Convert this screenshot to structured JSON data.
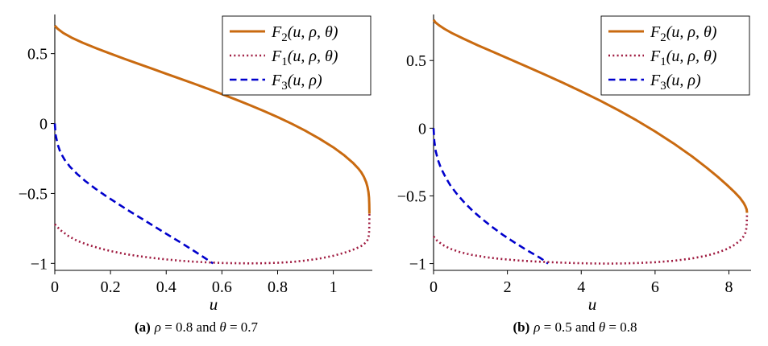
{
  "chart_data": [
    {
      "type": "line",
      "xlabel": "u",
      "xlim": [
        0,
        1.14
      ],
      "ylim": [
        -1.05,
        0.78
      ],
      "grid": false,
      "legend_position": "top-right",
      "xticks": [
        {
          "v": 0,
          "label": "0"
        },
        {
          "v": 0.2,
          "label": "0.2"
        },
        {
          "v": 0.4,
          "label": "0.4"
        },
        {
          "v": 0.6,
          "label": "0.6"
        },
        {
          "v": 0.8,
          "label": "0.8"
        },
        {
          "v": 1,
          "label": "1"
        }
      ],
      "yticks": [
        {
          "v": -1,
          "label": "−1"
        },
        {
          "v": -0.5,
          "label": "−0.5"
        },
        {
          "v": 0,
          "label": "0"
        },
        {
          "v": 0.5,
          "label": "0.5"
        }
      ],
      "caption": {
        "prefix": "(a)",
        "text": "ρ = 0.8 and θ = 0.7"
      },
      "series": [
        {
          "name": "F2",
          "label_base": "F",
          "label_sub": "2",
          "label_args": "(u, ρ, θ)",
          "color": "#C96A10",
          "style": "solid",
          "points": [
            [
              0,
              0.7
            ],
            [
              0.01,
              0.678
            ],
            [
              0.03,
              0.648
            ],
            [
              0.06,
              0.615
            ],
            [
              0.1,
              0.578
            ],
            [
              0.15,
              0.538
            ],
            [
              0.2,
              0.5
            ],
            [
              0.25,
              0.463
            ],
            [
              0.3,
              0.427
            ],
            [
              0.35,
              0.392
            ],
            [
              0.4,
              0.356
            ],
            [
              0.45,
              0.321
            ],
            [
              0.5,
              0.285
            ],
            [
              0.55,
              0.248
            ],
            [
              0.6,
              0.21
            ],
            [
              0.65,
              0.172
            ],
            [
              0.7,
              0.132
            ],
            [
              0.75,
              0.09
            ],
            [
              0.8,
              0.046
            ],
            [
              0.85,
              -0.001
            ],
            [
              0.9,
              -0.052
            ],
            [
              0.95,
              -0.108
            ],
            [
              1.0,
              -0.17
            ],
            [
              1.04,
              -0.228
            ],
            [
              1.07,
              -0.28
            ],
            [
              1.09,
              -0.322
            ],
            [
              1.1,
              -0.348
            ],
            [
              1.11,
              -0.382
            ],
            [
              1.118,
              -0.42
            ],
            [
              1.123,
              -0.455
            ],
            [
              1.126,
              -0.49
            ],
            [
              1.128,
              -0.53
            ],
            [
              1.129,
              -0.575
            ],
            [
              1.1295,
              -0.645
            ]
          ]
        },
        {
          "name": "F1",
          "label_base": "F",
          "label_sub": "1",
          "label_args": "(u, ρ, θ)",
          "color": "#9F1B40",
          "style": "dotted",
          "points": [
            [
              0,
              -0.72
            ],
            [
              0.02,
              -0.762
            ],
            [
              0.05,
              -0.806
            ],
            [
              0.08,
              -0.838
            ],
            [
              0.12,
              -0.868
            ],
            [
              0.16,
              -0.892
            ],
            [
              0.2,
              -0.912
            ],
            [
              0.25,
              -0.932
            ],
            [
              0.3,
              -0.948
            ],
            [
              0.35,
              -0.961
            ],
            [
              0.4,
              -0.972
            ],
            [
              0.45,
              -0.981
            ],
            [
              0.5,
              -0.988
            ],
            [
              0.55,
              -0.993
            ],
            [
              0.6,
              -0.997
            ],
            [
              0.65,
              -0.999
            ],
            [
              0.7,
              -1.0
            ],
            [
              0.75,
              -0.999
            ],
            [
              0.8,
              -0.996
            ],
            [
              0.85,
              -0.99
            ],
            [
              0.9,
              -0.98
            ],
            [
              0.95,
              -0.966
            ],
            [
              1.0,
              -0.946
            ],
            [
              1.04,
              -0.924
            ],
            [
              1.07,
              -0.903
            ],
            [
              1.09,
              -0.886
            ],
            [
              1.1,
              -0.876
            ],
            [
              1.11,
              -0.862
            ],
            [
              1.118,
              -0.848
            ],
            [
              1.123,
              -0.832
            ],
            [
              1.126,
              -0.815
            ],
            [
              1.128,
              -0.79
            ],
            [
              1.129,
              -0.755
            ],
            [
              1.1295,
              -0.645
            ]
          ]
        },
        {
          "name": "F3",
          "label_base": "F",
          "label_sub": "3",
          "label_args": "(u, ρ)",
          "color": "#0000CC",
          "style": "dashed",
          "points": [
            [
              0,
              0
            ],
            [
              0.003,
              -0.08
            ],
            [
              0.01,
              -0.148
            ],
            [
              0.02,
              -0.205
            ],
            [
              0.035,
              -0.258
            ],
            [
              0.055,
              -0.31
            ],
            [
              0.08,
              -0.36
            ],
            [
              0.11,
              -0.412
            ],
            [
              0.145,
              -0.465
            ],
            [
              0.185,
              -0.52
            ],
            [
              0.23,
              -0.578
            ],
            [
              0.275,
              -0.635
            ],
            [
              0.32,
              -0.69
            ],
            [
              0.365,
              -0.745
            ],
            [
              0.41,
              -0.8
            ],
            [
              0.455,
              -0.855
            ],
            [
              0.495,
              -0.905
            ],
            [
              0.53,
              -0.95
            ],
            [
              0.555,
              -0.983
            ],
            [
              0.568,
              -1.0
            ]
          ]
        }
      ]
    },
    {
      "type": "line",
      "xlabel": "u",
      "xlim": [
        0,
        8.6
      ],
      "ylim": [
        -1.05,
        0.84
      ],
      "grid": false,
      "legend_position": "top-right",
      "xticks": [
        {
          "v": 0,
          "label": "0"
        },
        {
          "v": 2,
          "label": "2"
        },
        {
          "v": 4,
          "label": "4"
        },
        {
          "v": 6,
          "label": "6"
        },
        {
          "v": 8,
          "label": "8"
        }
      ],
      "yticks": [
        {
          "v": -1,
          "label": "−1"
        },
        {
          "v": -0.5,
          "label": "−0.5"
        },
        {
          "v": 0,
          "label": "0"
        },
        {
          "v": 0.5,
          "label": "0.5"
        }
      ],
      "caption": {
        "prefix": "(b)",
        "text": "ρ = 0.5 and θ = 0.8"
      },
      "series": [
        {
          "name": "F2",
          "label_base": "F",
          "label_sub": "2",
          "label_args": "(u, ρ, θ)",
          "color": "#C96A10",
          "style": "solid",
          "points": [
            [
              0,
              0.8
            ],
            [
              0.05,
              0.782
            ],
            [
              0.15,
              0.76
            ],
            [
              0.3,
              0.733
            ],
            [
              0.5,
              0.702
            ],
            [
              0.8,
              0.662
            ],
            [
              1.2,
              0.612
            ],
            [
              1.6,
              0.565
            ],
            [
              2.0,
              0.518
            ],
            [
              2.5,
              0.458
            ],
            [
              3.0,
              0.398
            ],
            [
              3.5,
              0.336
            ],
            [
              4.0,
              0.272
            ],
            [
              4.5,
              0.205
            ],
            [
              5.0,
              0.134
            ],
            [
              5.5,
              0.058
            ],
            [
              6.0,
              -0.024
            ],
            [
              6.5,
              -0.112
            ],
            [
              7.0,
              -0.208
            ],
            [
              7.4,
              -0.292
            ],
            [
              7.7,
              -0.36
            ],
            [
              7.95,
              -0.42
            ],
            [
              8.15,
              -0.472
            ],
            [
              8.3,
              -0.515
            ],
            [
              8.4,
              -0.552
            ],
            [
              8.45,
              -0.578
            ],
            [
              8.48,
              -0.6
            ],
            [
              8.49,
              -0.625
            ]
          ]
        },
        {
          "name": "F1",
          "label_base": "F",
          "label_sub": "1",
          "label_args": "(u, ρ, θ)",
          "color": "#9F1B40",
          "style": "dotted",
          "points": [
            [
              0,
              -0.8
            ],
            [
              0.1,
              -0.832
            ],
            [
              0.25,
              -0.862
            ],
            [
              0.45,
              -0.89
            ],
            [
              0.7,
              -0.914
            ],
            [
              1.0,
              -0.934
            ],
            [
              1.4,
              -0.952
            ],
            [
              1.8,
              -0.965
            ],
            [
              2.3,
              -0.977
            ],
            [
              2.8,
              -0.985
            ],
            [
              3.3,
              -0.991
            ],
            [
              3.8,
              -0.996
            ],
            [
              4.3,
              -0.999
            ],
            [
              4.7,
              -1.0
            ],
            [
              5.1,
              -0.999
            ],
            [
              5.5,
              -0.996
            ],
            [
              6.0,
              -0.99
            ],
            [
              6.5,
              -0.979
            ],
            [
              7.0,
              -0.962
            ],
            [
              7.4,
              -0.941
            ],
            [
              7.7,
              -0.918
            ],
            [
              7.95,
              -0.892
            ],
            [
              8.15,
              -0.862
            ],
            [
              8.3,
              -0.83
            ],
            [
              8.4,
              -0.798
            ],
            [
              8.45,
              -0.77
            ],
            [
              8.48,
              -0.73
            ],
            [
              8.49,
              -0.625
            ]
          ]
        },
        {
          "name": "F3",
          "label_base": "F",
          "label_sub": "3",
          "label_args": "(u, ρ)",
          "color": "#0000CC",
          "style": "dashed",
          "points": [
            [
              0,
              0
            ],
            [
              0.02,
              -0.095
            ],
            [
              0.06,
              -0.17
            ],
            [
              0.12,
              -0.235
            ],
            [
              0.2,
              -0.295
            ],
            [
              0.32,
              -0.36
            ],
            [
              0.45,
              -0.42
            ],
            [
              0.62,
              -0.482
            ],
            [
              0.82,
              -0.545
            ],
            [
              1.05,
              -0.608
            ],
            [
              1.3,
              -0.668
            ],
            [
              1.58,
              -0.728
            ],
            [
              1.88,
              -0.788
            ],
            [
              2.18,
              -0.842
            ],
            [
              2.48,
              -0.893
            ],
            [
              2.73,
              -0.933
            ],
            [
              2.9,
              -0.96
            ],
            [
              3.02,
              -0.982
            ],
            [
              3.1,
              -1.0
            ]
          ]
        }
      ]
    }
  ]
}
